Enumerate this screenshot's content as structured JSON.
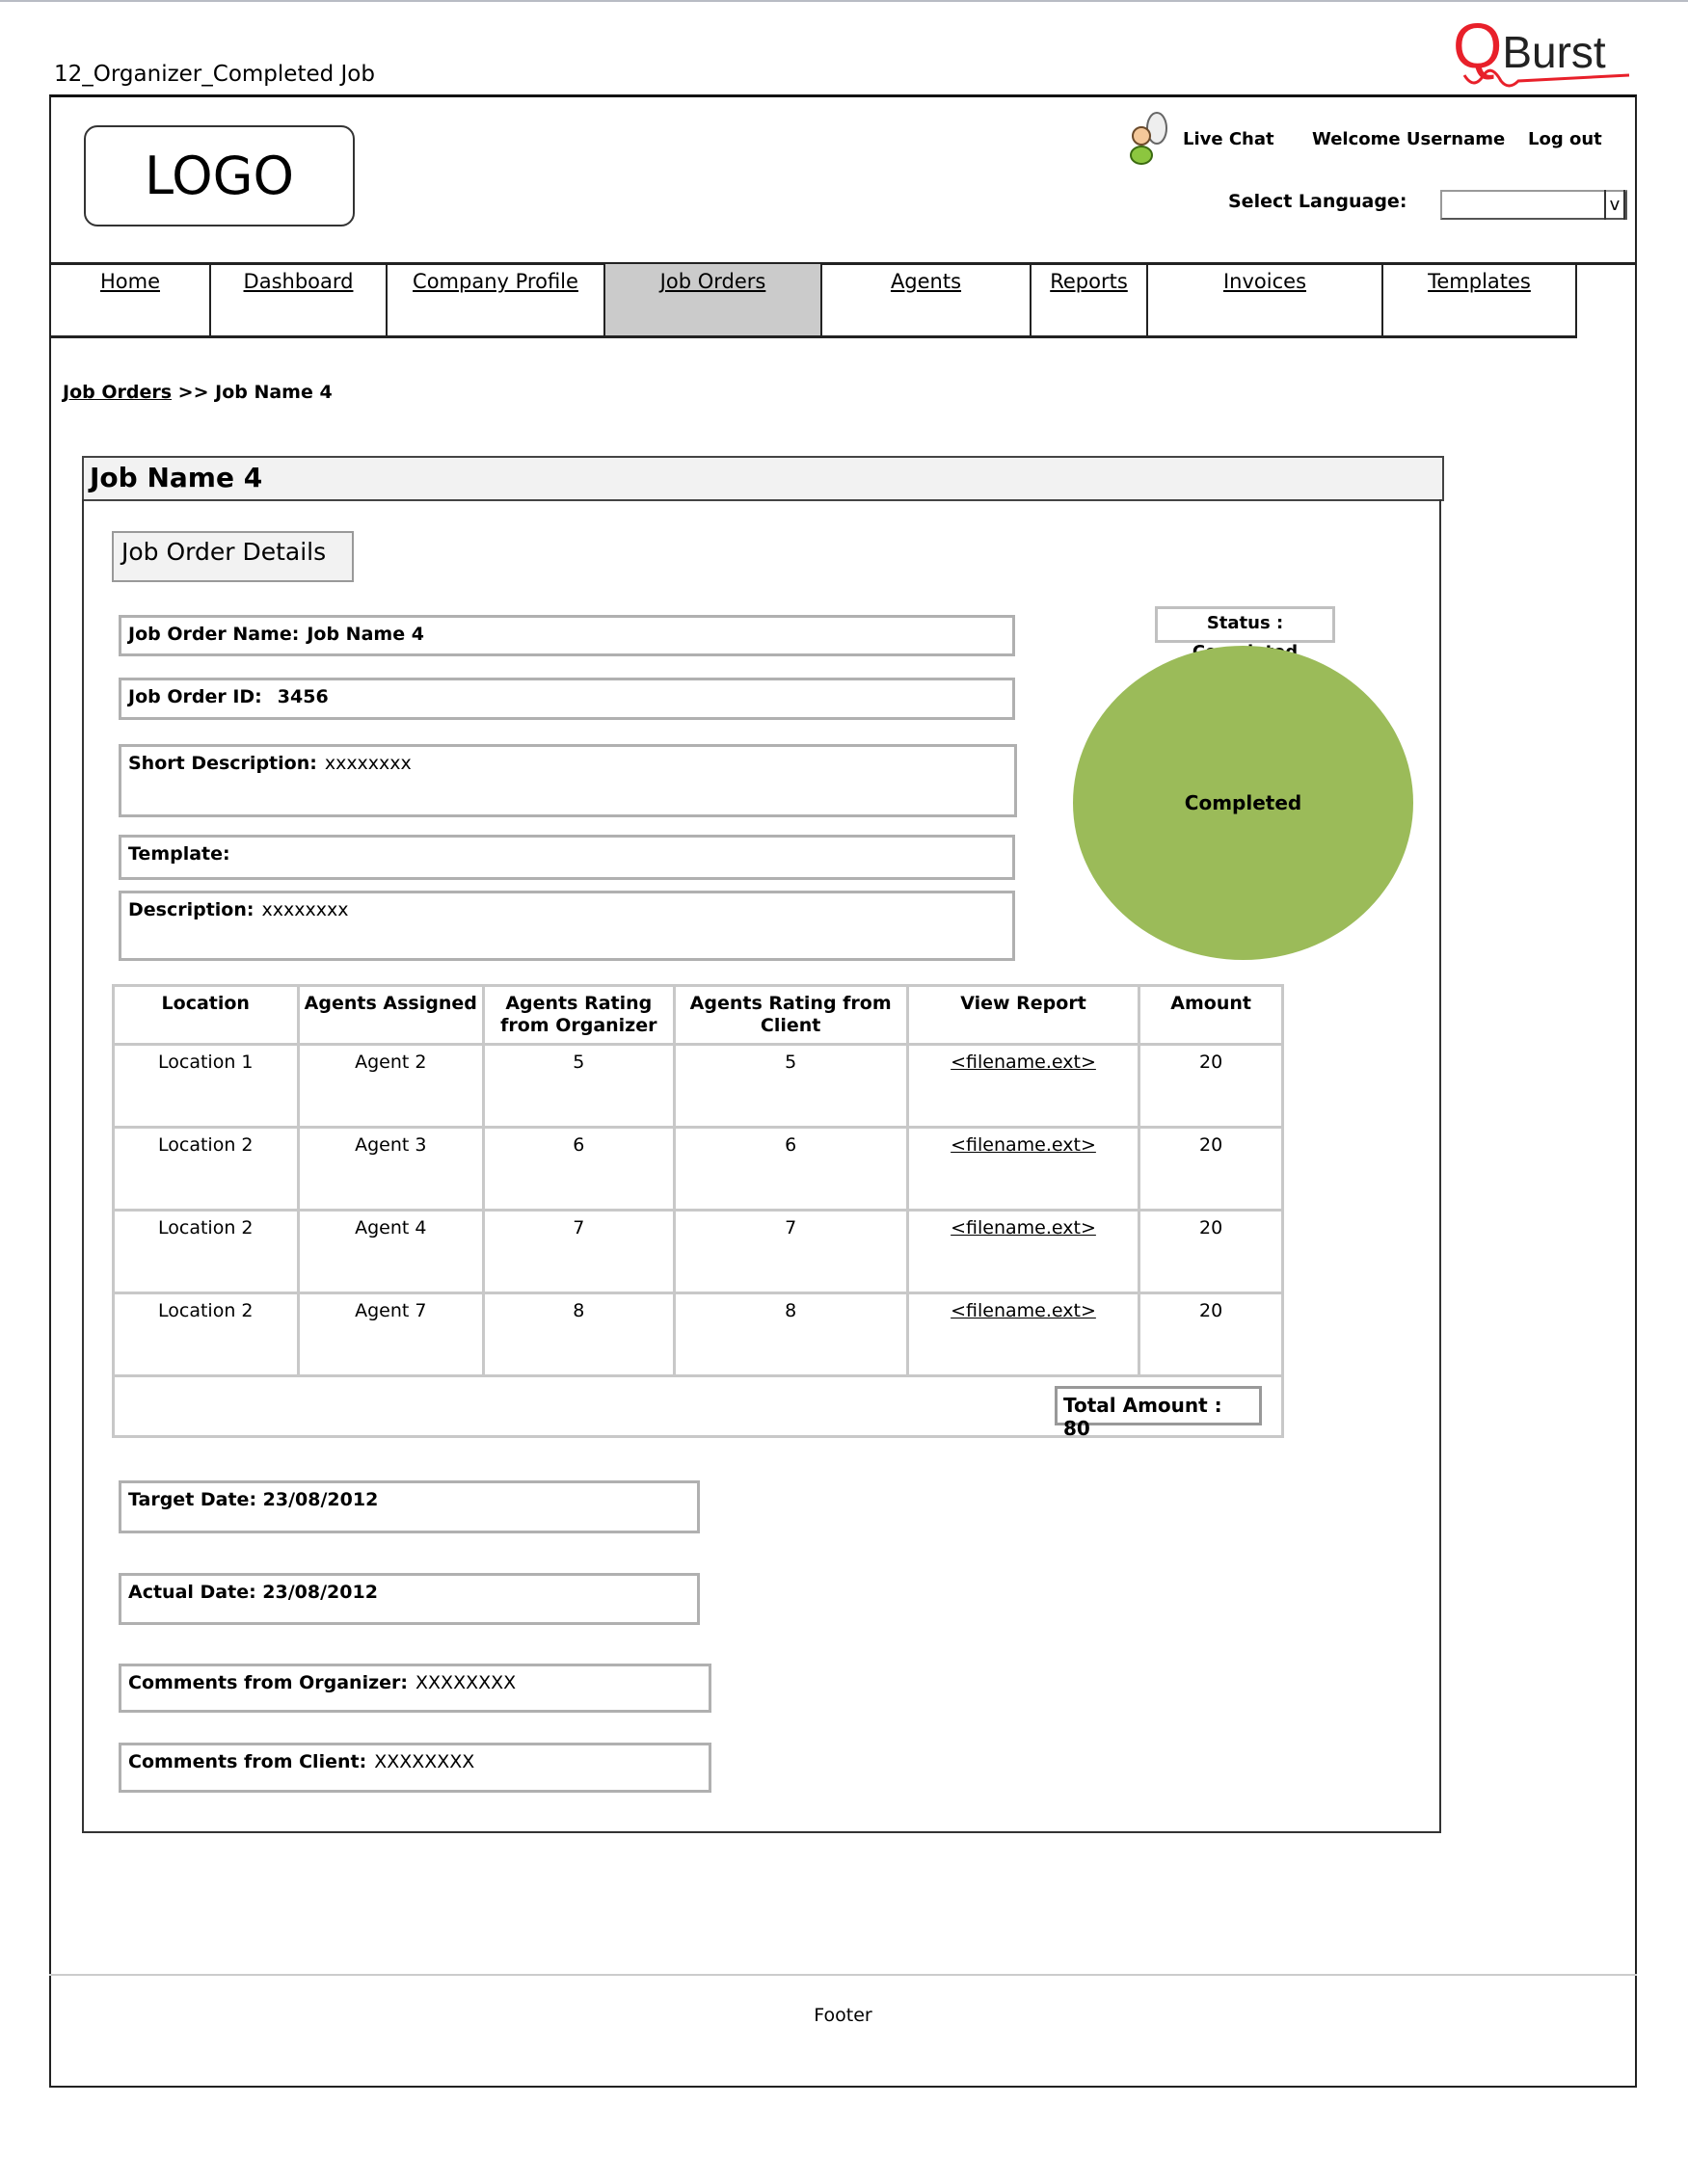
{
  "page_title": "12_Organizer_Completed Job",
  "brand": {
    "text": "QBurst",
    "accent": "#e8202a"
  },
  "header": {
    "logo": "LOGO",
    "live_chat": "Live Chat",
    "welcome": "Welcome Username",
    "logout": "Log out",
    "select_language": "Select Language:",
    "language_value": "",
    "dropdown_arrow": "v"
  },
  "nav": {
    "items": [
      {
        "label": "Home"
      },
      {
        "label": "Dashboard"
      },
      {
        "label": "Company Profile"
      },
      {
        "label": "Job Orders",
        "active": true
      },
      {
        "label": "Agents"
      },
      {
        "label": "Reports"
      },
      {
        "label": "Invoices"
      },
      {
        "label": "Templates"
      }
    ]
  },
  "breadcrumb": {
    "link": "Job Orders",
    "sep": ">>",
    "current": "Job Name 4"
  },
  "panel": {
    "title": "Job Name 4",
    "section": "Job Order Details",
    "fields": {
      "name": {
        "label": "Job Order Name:",
        "value": "Job Name 4"
      },
      "id": {
        "label": "Job Order ID:",
        "value": "3456"
      },
      "short_desc": {
        "label": "Short Description:",
        "value": "xxxxxxxx"
      },
      "template": {
        "label": "Template:",
        "value": ""
      },
      "description": {
        "label": "Description:",
        "value": "xxxxxxxx"
      }
    },
    "status": {
      "label": "Status : Completed",
      "circle_text": "Completed",
      "color": "#9bbb59"
    },
    "table": {
      "headers": [
        "Location",
        "Agents Assigned",
        "Agents Rating from Organizer",
        "Agents Rating from Client",
        "View Report",
        "Amount"
      ],
      "rows": [
        [
          "Location 1",
          "Agent 2",
          "5",
          "5",
          "<filename.ext>",
          "20"
        ],
        [
          "Location 2",
          "Agent 3",
          "6",
          "6",
          "<filename.ext>",
          "20"
        ],
        [
          "Location 2",
          "Agent 4",
          "7",
          "7",
          "<filename.ext>",
          "20"
        ],
        [
          "Location 2",
          "Agent 7",
          "8",
          "8",
          "<filename.ext>",
          "20"
        ]
      ],
      "total": "Total Amount : 80"
    },
    "target_date": "Target Date: 23/08/2012",
    "actual_date": "Actual Date: 23/08/2012",
    "comments_organizer": {
      "label": "Comments from Organizer:",
      "value": "XXXXXXXX"
    },
    "comments_client": {
      "label": "Comments from Client:",
      "value": "XXXXXXXX"
    }
  },
  "footer": "Footer"
}
